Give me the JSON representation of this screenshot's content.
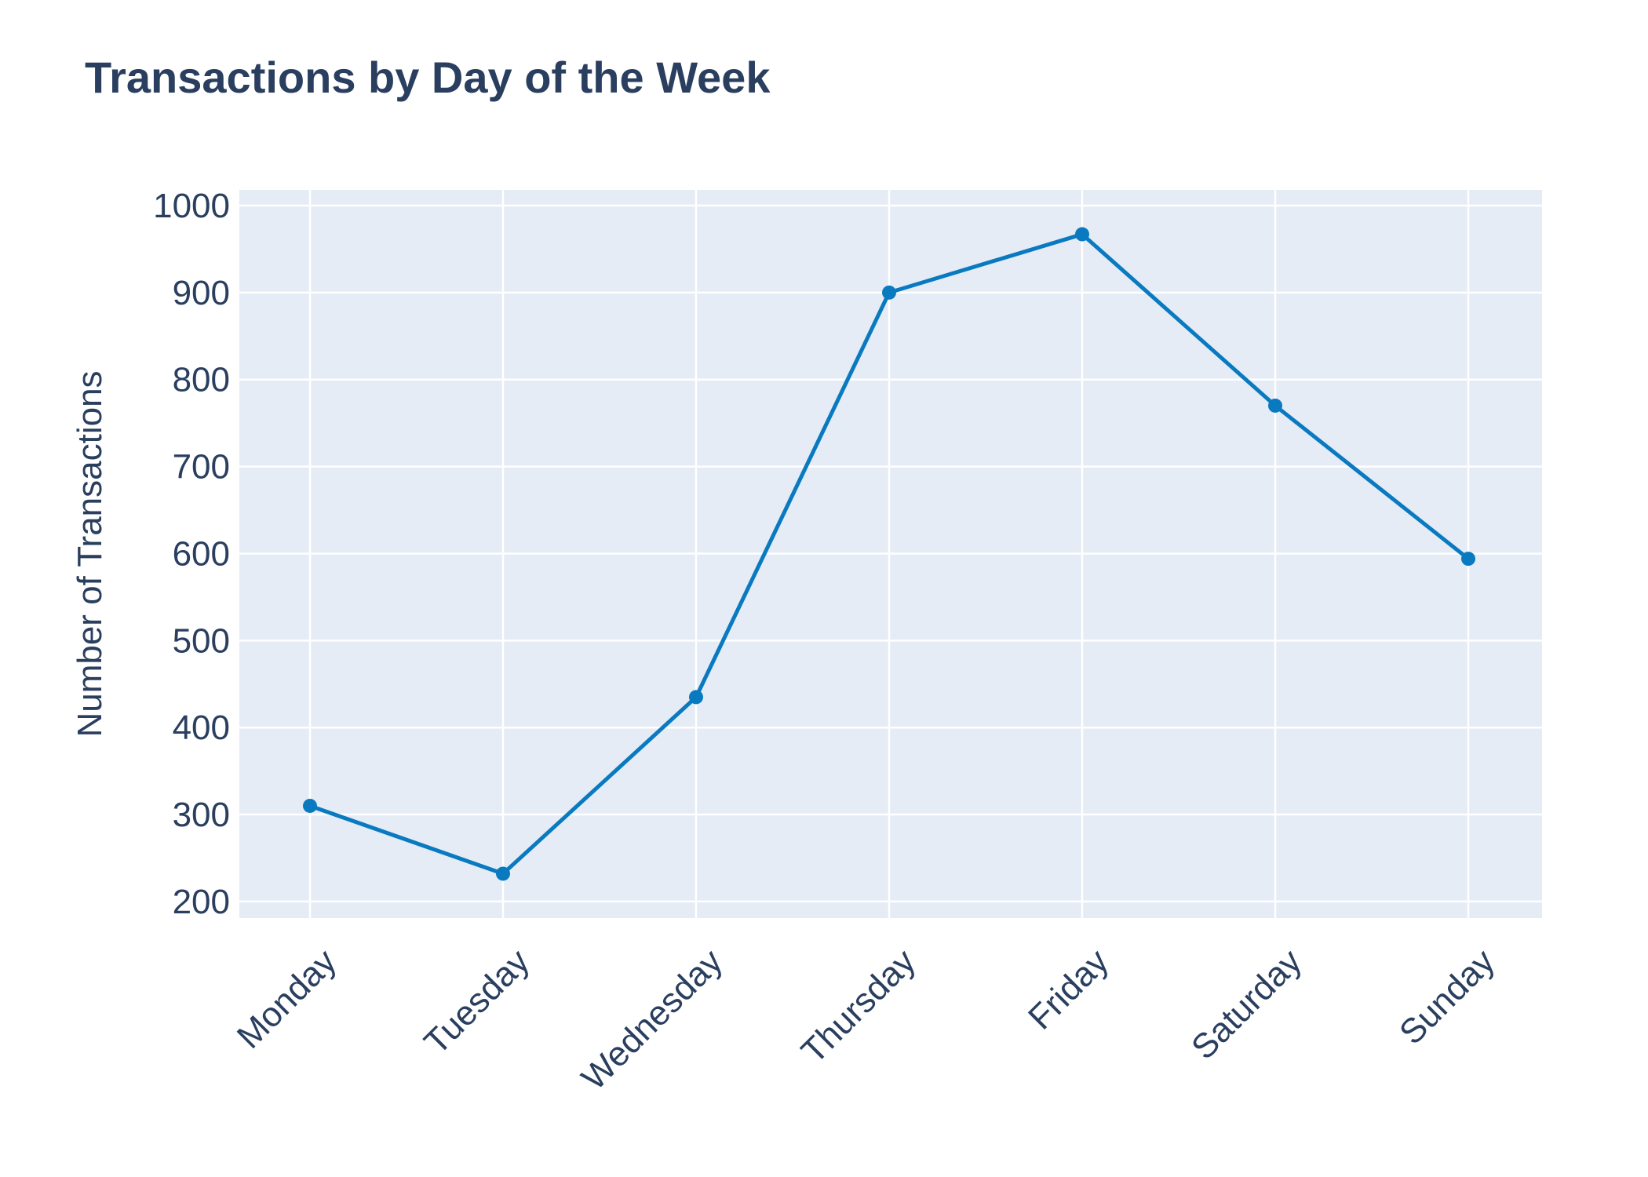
{
  "chart_data": {
    "type": "line",
    "title": "Transactions by Day of the Week",
    "xlabel": "",
    "ylabel": "Number of Transactions",
    "categories": [
      "Monday",
      "Tuesday",
      "Wednesday",
      "Thursday",
      "Friday",
      "Saturday",
      "Sunday"
    ],
    "series": [
      {
        "values": [
          310,
          232,
          435,
          900,
          967,
          770,
          594
        ]
      }
    ],
    "ylim": [
      181,
      1018
    ],
    "yticks": [
      200,
      300,
      400,
      500,
      600,
      700,
      800,
      900,
      1000
    ],
    "grid": true,
    "legend": "none",
    "colors": {
      "line": "#0a7ac0",
      "plot_background": "#e5ecf6",
      "grid": "#ffffff",
      "text": "#2a3f5f"
    }
  }
}
